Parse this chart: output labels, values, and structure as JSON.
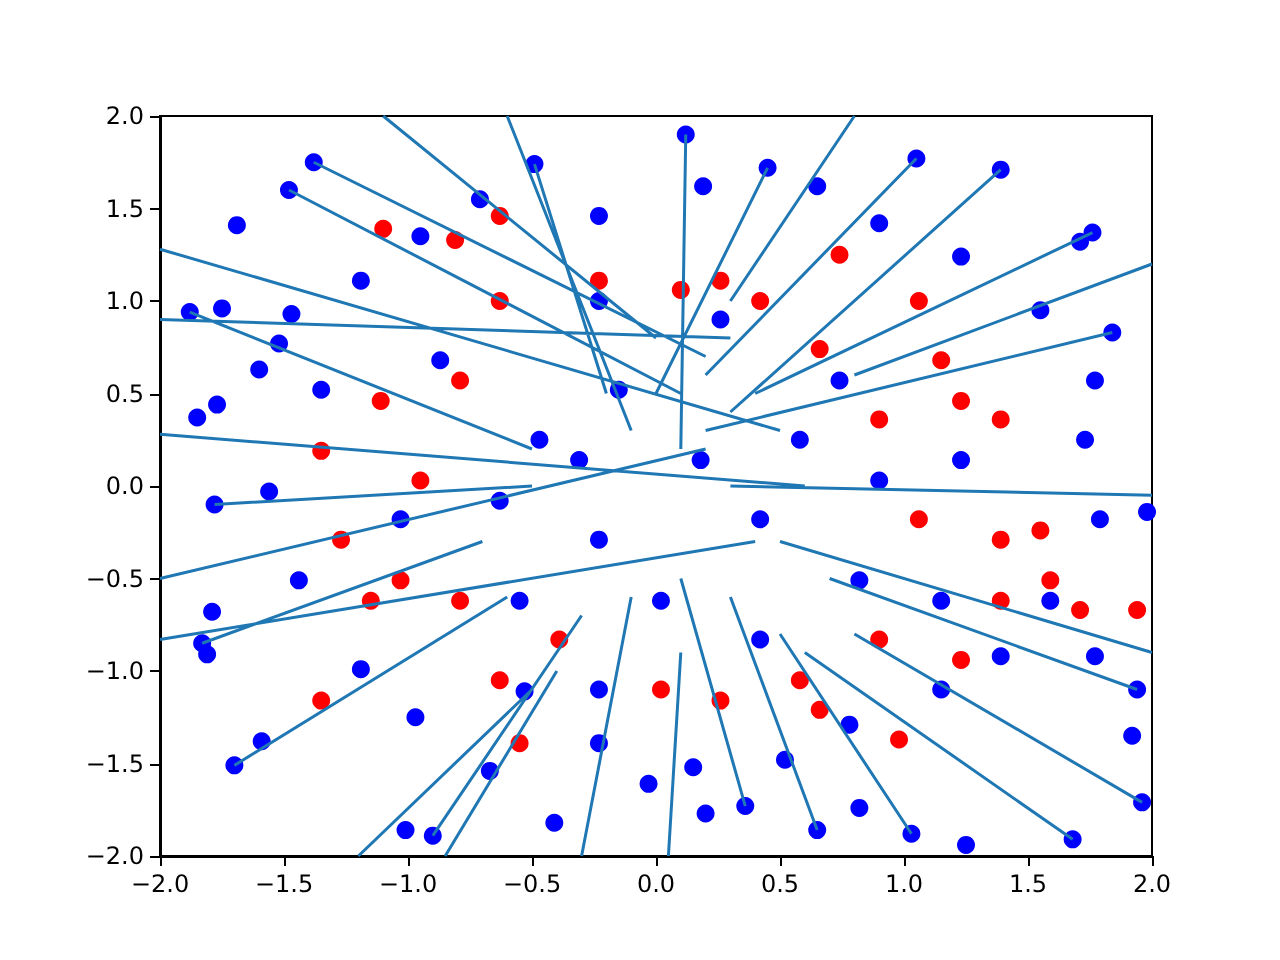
{
  "chart_data": {
    "type": "scatter",
    "marker": "circle",
    "grid": false,
    "xlim": [
      -2,
      2
    ],
    "ylim": [
      -2,
      2
    ],
    "xticks": [
      {
        "value": -2,
        "label": "−2.0"
      },
      {
        "value": -1.5,
        "label": "−1.5"
      },
      {
        "value": -1,
        "label": "−1.0"
      },
      {
        "value": -0.5,
        "label": "−0.5"
      },
      {
        "value": 0,
        "label": "0.0"
      },
      {
        "value": 0.5,
        "label": "0.5"
      },
      {
        "value": 1,
        "label": "1.0"
      },
      {
        "value": 1.5,
        "label": "1.5"
      },
      {
        "value": 2,
        "label": "2.0"
      }
    ],
    "yticks": [
      {
        "value": -2,
        "label": "−2.0"
      },
      {
        "value": -1.5,
        "label": "−1.5"
      },
      {
        "value": -1,
        "label": "−1.0"
      },
      {
        "value": -0.5,
        "label": "−0.5"
      },
      {
        "value": 0,
        "label": "0.0"
      },
      {
        "value": 0.5,
        "label": "0.5"
      },
      {
        "value": 1,
        "label": "1.0"
      },
      {
        "value": 1.5,
        "label": "1.5"
      },
      {
        "value": 2,
        "label": "2.0"
      }
    ],
    "series": [
      {
        "color": "#ff0000",
        "x": [
          -1.1,
          -0.81,
          -0.63,
          0.1,
          0.26,
          0.74,
          1.06,
          -1.11,
          -1.35,
          -1.27,
          -1.15,
          -1.35,
          -0.63,
          -0.55,
          0.02,
          0.26,
          0.66,
          0.9,
          1.23,
          1.59,
          1.71,
          1.94,
          1.23,
          1.39,
          1.15,
          0.66,
          -0.79,
          -0.95,
          -1.03,
          -0.23,
          -0.63,
          0.42,
          0.9,
          1.06,
          1.39,
          -0.79,
          -0.39,
          0.58,
          0.98,
          1.39,
          1.55
        ],
        "values": [
          1.39,
          1.33,
          1.46,
          1.06,
          1.11,
          1.25,
          1.0,
          0.46,
          0.19,
          -0.29,
          -0.62,
          -1.16,
          -1.05,
          -1.39,
          -1.1,
          -1.16,
          -1.21,
          -0.83,
          -0.94,
          -0.51,
          -0.67,
          -0.67,
          0.46,
          0.36,
          0.68,
          0.74,
          0.57,
          0.03,
          -0.51,
          1.11,
          1.0,
          1.0,
          0.36,
          -0.18,
          -0.29,
          -0.62,
          -0.83,
          -1.05,
          -1.37,
          -0.62,
          -0.24
        ]
      },
      {
        "type": "line",
        "marker": "none",
        "color": "#1f77b4",
        "x": [
          -2,
          0.5,
          null,
          -2,
          0.3,
          null,
          -2,
          0.6,
          null,
          -2,
          0.2,
          null,
          -2,
          0.4,
          null,
          -1.38,
          0.2,
          null,
          -1.48,
          0.1,
          null,
          -1.1,
          0,
          null,
          -0.6,
          -0.1,
          null,
          0.12,
          0.1,
          null,
          0.45,
          0,
          null,
          1.05,
          0.2,
          null,
          1.39,
          0.3,
          null,
          1.76,
          0.4,
          null,
          1.84,
          0.2,
          null,
          2,
          0.3,
          null,
          2,
          0.5,
          null,
          1.96,
          0.8,
          null,
          1.94,
          0.7,
          null,
          1.68,
          0.6,
          null,
          1.03,
          0.5,
          null,
          0.65,
          0.3,
          null,
          0.36,
          0.1,
          null,
          0.05,
          0.1,
          null,
          -0.3,
          -0.1,
          null,
          -0.9,
          -0.3,
          null,
          -0.85,
          -0.4,
          null,
          -1.7,
          -0.6,
          null,
          -1.83,
          -0.7,
          null,
          -1.78,
          -0.5,
          null,
          -1.88,
          -0.5,
          null,
          -0.49,
          -0.2,
          null,
          0.8,
          0.3,
          null,
          2,
          0.8,
          null,
          -1.2,
          -0.5
        ],
        "values": [
          1.28,
          0.3,
          null,
          0.9,
          0.8,
          null,
          0.28,
          0.0,
          null,
          -0.5,
          0.2,
          null,
          -0.83,
          -0.3,
          null,
          1.75,
          0.7,
          null,
          1.6,
          0.5,
          null,
          2,
          0.8,
          null,
          2,
          0.3,
          null,
          1.9,
          0.2,
          null,
          1.72,
          0.5,
          null,
          1.77,
          0.6,
          null,
          1.71,
          0.4,
          null,
          1.37,
          0.5,
          null,
          0.83,
          0.3,
          null,
          -0.05,
          0.0,
          null,
          -0.9,
          -0.3,
          null,
          -1.71,
          -0.8,
          null,
          -1.1,
          -0.5,
          null,
          -1.91,
          -0.9,
          null,
          -1.88,
          -0.8,
          null,
          -1.86,
          -0.6,
          null,
          -1.73,
          -0.5,
          null,
          -2,
          -0.9,
          null,
          -2,
          -0.6,
          null,
          -1.89,
          -0.7,
          null,
          -2,
          -1.0,
          null,
          -1.51,
          -0.6,
          null,
          -0.85,
          -0.3,
          null,
          -0.1,
          0.0,
          null,
          0.94,
          0.2,
          null,
          1.74,
          0.5,
          null,
          2,
          1.0,
          null,
          1.2,
          0.6,
          null,
          -2,
          -1.1
        ]
      },
      {
        "color": "#0000ff",
        "x": [
          -1.38,
          -1.48,
          0.12,
          0.45,
          -0.49,
          1.05,
          1.39,
          0.65,
          0.19,
          -1.69,
          1.76,
          1.71,
          -1.88,
          -1.75,
          1.84,
          1.98,
          1.94,
          1.96,
          1.92,
          1.77,
          1.68,
          1.25,
          1.03,
          0.82,
          0.65,
          0.36,
          0.2,
          -0.03,
          -0.41,
          -0.9,
          -1.01,
          -0.97,
          -1.7,
          -1.59,
          -1.81,
          -1.83,
          -1.79,
          -1.85,
          -1.77,
          -1.78,
          -1.6,
          -1.52,
          -1.56,
          -1.47,
          -0.23,
          -0.23,
          -0.53,
          0.15,
          0.52,
          0.78,
          1.15,
          1.39,
          1.59,
          1.79,
          1.73,
          1.77,
          1.55,
          1.23,
          0.9,
          -0.23,
          -0.71,
          -0.95,
          -1.19,
          -1.35,
          -1.44,
          -1.19,
          -0.67,
          -0.31,
          -0.15,
          0.18,
          0.42,
          -0.23,
          0.02,
          -0.47,
          0.58,
          0.74,
          -0.63,
          0.82,
          0.26,
          -0.23,
          -0.87,
          0.9,
          1.23,
          -1.03,
          1.15,
          -0.55,
          0.42
        ],
        "values": [
          1.75,
          1.6,
          1.9,
          1.72,
          1.74,
          1.77,
          1.71,
          1.62,
          1.62,
          1.41,
          1.37,
          1.32,
          0.94,
          0.96,
          0.83,
          -0.14,
          -1.1,
          -1.71,
          -1.35,
          -0.92,
          -1.91,
          -1.94,
          -1.88,
          -1.74,
          -1.86,
          -1.73,
          -1.77,
          -1.61,
          -1.82,
          -1.89,
          -1.86,
          -1.25,
          -1.51,
          -1.38,
          -0.91,
          -0.85,
          -0.68,
          0.37,
          0.44,
          -0.1,
          0.63,
          0.77,
          -0.03,
          0.93,
          -1.39,
          -1.1,
          -1.11,
          -1.52,
          -1.48,
          -1.29,
          -1.1,
          -0.92,
          -0.62,
          -0.18,
          0.25,
          0.57,
          0.95,
          1.24,
          1.42,
          1.46,
          1.55,
          1.35,
          1.11,
          0.52,
          -0.51,
          -0.99,
          -1.54,
          0.14,
          0.52,
          0.14,
          -0.18,
          -0.29,
          -0.62,
          0.25,
          0.25,
          0.57,
          -0.08,
          -0.51,
          0.9,
          1.0,
          0.68,
          0.03,
          0.14,
          -0.18,
          -0.62,
          -0.62,
          -0.83
        ]
      }
    ]
  }
}
